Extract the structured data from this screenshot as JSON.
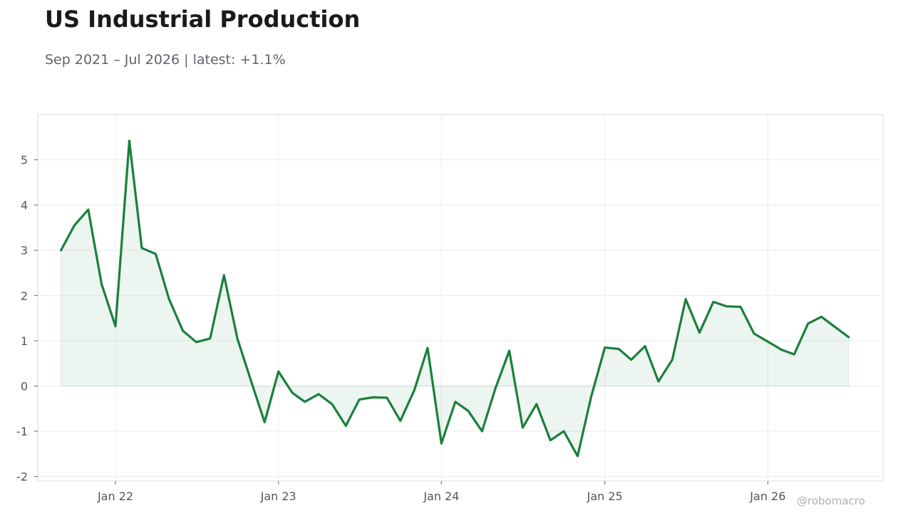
{
  "header": {
    "title": "US Industrial Production",
    "subtitle": "Sep 2021 – Jul 2026 | latest: +1.1%"
  },
  "watermark": "@robomacro",
  "colors": {
    "line": "#1b7f3e",
    "fill": "#1b7f3e",
    "grid": "#ececec",
    "frame": "#dddddd"
  },
  "chart_data": {
    "type": "area",
    "title": "US Industrial Production",
    "subtitle": "Sep 2021 – Jul 2026 | latest: +1.1%",
    "xlabel": "",
    "ylabel": "",
    "grid": true,
    "legend": "none",
    "ylim": [
      -2.1,
      6.0
    ],
    "yticks": [
      -2,
      -1,
      0,
      1,
      2,
      3,
      4,
      5
    ],
    "ytick_labels": [
      "-2",
      "-1",
      "0",
      "1",
      "2",
      "3",
      "4",
      "5"
    ],
    "xlim": [
      "2021-07-11",
      "2026-09-16"
    ],
    "xticks": [
      "2022-01-01",
      "2023-01-01",
      "2024-01-01",
      "2025-01-01",
      "2026-01-01"
    ],
    "xtick_labels": [
      "Jan 22",
      "Jan 23",
      "Jan 24",
      "Jan 25",
      "Jan 26"
    ],
    "series": [
      {
        "name": "",
        "x": [
          "2021-09",
          "2021-10",
          "2021-11",
          "2021-12",
          "2022-01",
          "2022-02",
          "2022-03",
          "2022-04",
          "2022-05",
          "2022-06",
          "2022-07",
          "2022-08",
          "2022-09",
          "2022-10",
          "2022-11",
          "2022-12",
          "2023-01",
          "2023-02",
          "2023-03",
          "2023-04",
          "2023-05",
          "2023-06",
          "2023-07",
          "2023-08",
          "2023-09",
          "2023-10",
          "2023-11",
          "2023-12",
          "2024-01",
          "2024-02",
          "2024-03",
          "2024-04",
          "2024-05",
          "2024-06",
          "2024-07",
          "2024-08",
          "2024-09",
          "2024-10",
          "2024-11",
          "2024-12",
          "2025-01",
          "2025-02",
          "2025-03",
          "2025-04",
          "2025-05",
          "2025-06",
          "2025-07",
          "2025-08",
          "2025-09",
          "2025-10",
          "2025-11",
          "2025-12",
          "2026-01",
          "2026-02",
          "2026-03",
          "2026-04",
          "2026-05",
          "2026-06",
          "2026-07"
        ],
        "values": [
          3.0,
          3.55,
          3.9,
          2.25,
          1.32,
          5.42,
          3.05,
          2.92,
          1.92,
          1.22,
          0.97,
          1.05,
          2.45,
          1.05,
          0.1,
          -0.8,
          0.32,
          -0.15,
          -0.35,
          -0.18,
          -0.4,
          -0.88,
          -0.3,
          -0.25,
          -0.26,
          -0.77,
          -0.1,
          0.84,
          -1.27,
          -0.35,
          -0.55,
          -1.0,
          -0.05,
          0.78,
          -0.92,
          -0.4,
          -1.2,
          -1.0,
          -1.55,
          -0.25,
          0.85,
          0.82,
          0.58,
          0.88,
          0.1,
          0.58,
          1.92,
          1.18,
          1.86,
          1.76,
          1.75,
          1.16,
          0.98,
          0.8,
          0.7,
          1.38,
          1.53,
          1.3,
          1.08
        ]
      }
    ]
  }
}
